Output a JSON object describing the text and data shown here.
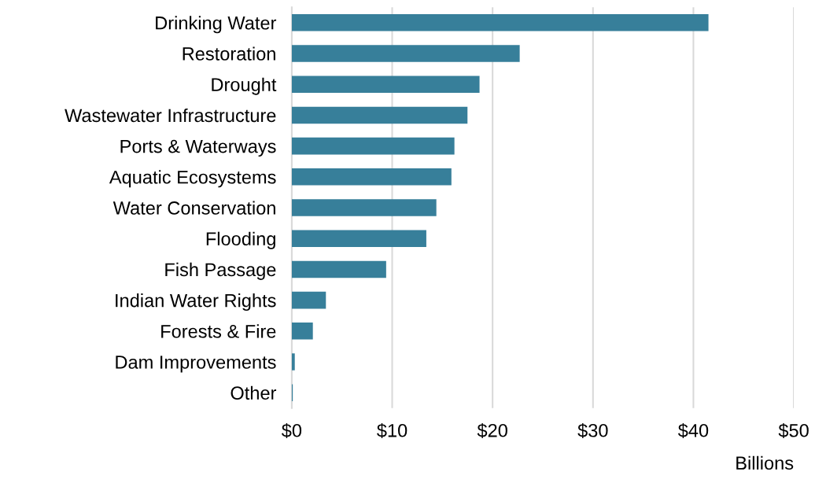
{
  "chart_data": {
    "type": "bar",
    "orientation": "horizontal",
    "xlabel": "Billions",
    "categories": [
      "Drinking Water",
      "Restoration",
      "Drought",
      "Wastewater Infrastructure",
      "Ports & Waterways",
      "Aquatic Ecosystems",
      "Water Conservation",
      "Flooding",
      "Fish Passage",
      "Indian Water Rights",
      "Forests & Fire",
      "Dam Improvements",
      "Other"
    ],
    "values": [
      41.5,
      22.7,
      18.7,
      17.5,
      16.2,
      15.9,
      14.4,
      13.4,
      9.4,
      3.4,
      2.1,
      0.3,
      0.1
    ],
    "color": "#377f9a",
    "xlim": [
      0,
      50
    ],
    "xticks": [
      {
        "value": 0,
        "label": "$0"
      },
      {
        "value": 10,
        "label": "$10"
      },
      {
        "value": 20,
        "label": "$20"
      },
      {
        "value": 30,
        "label": "$30"
      },
      {
        "value": 40,
        "label": "$40"
      },
      {
        "value": 50,
        "label": "$50"
      }
    ],
    "grid": "x"
  }
}
